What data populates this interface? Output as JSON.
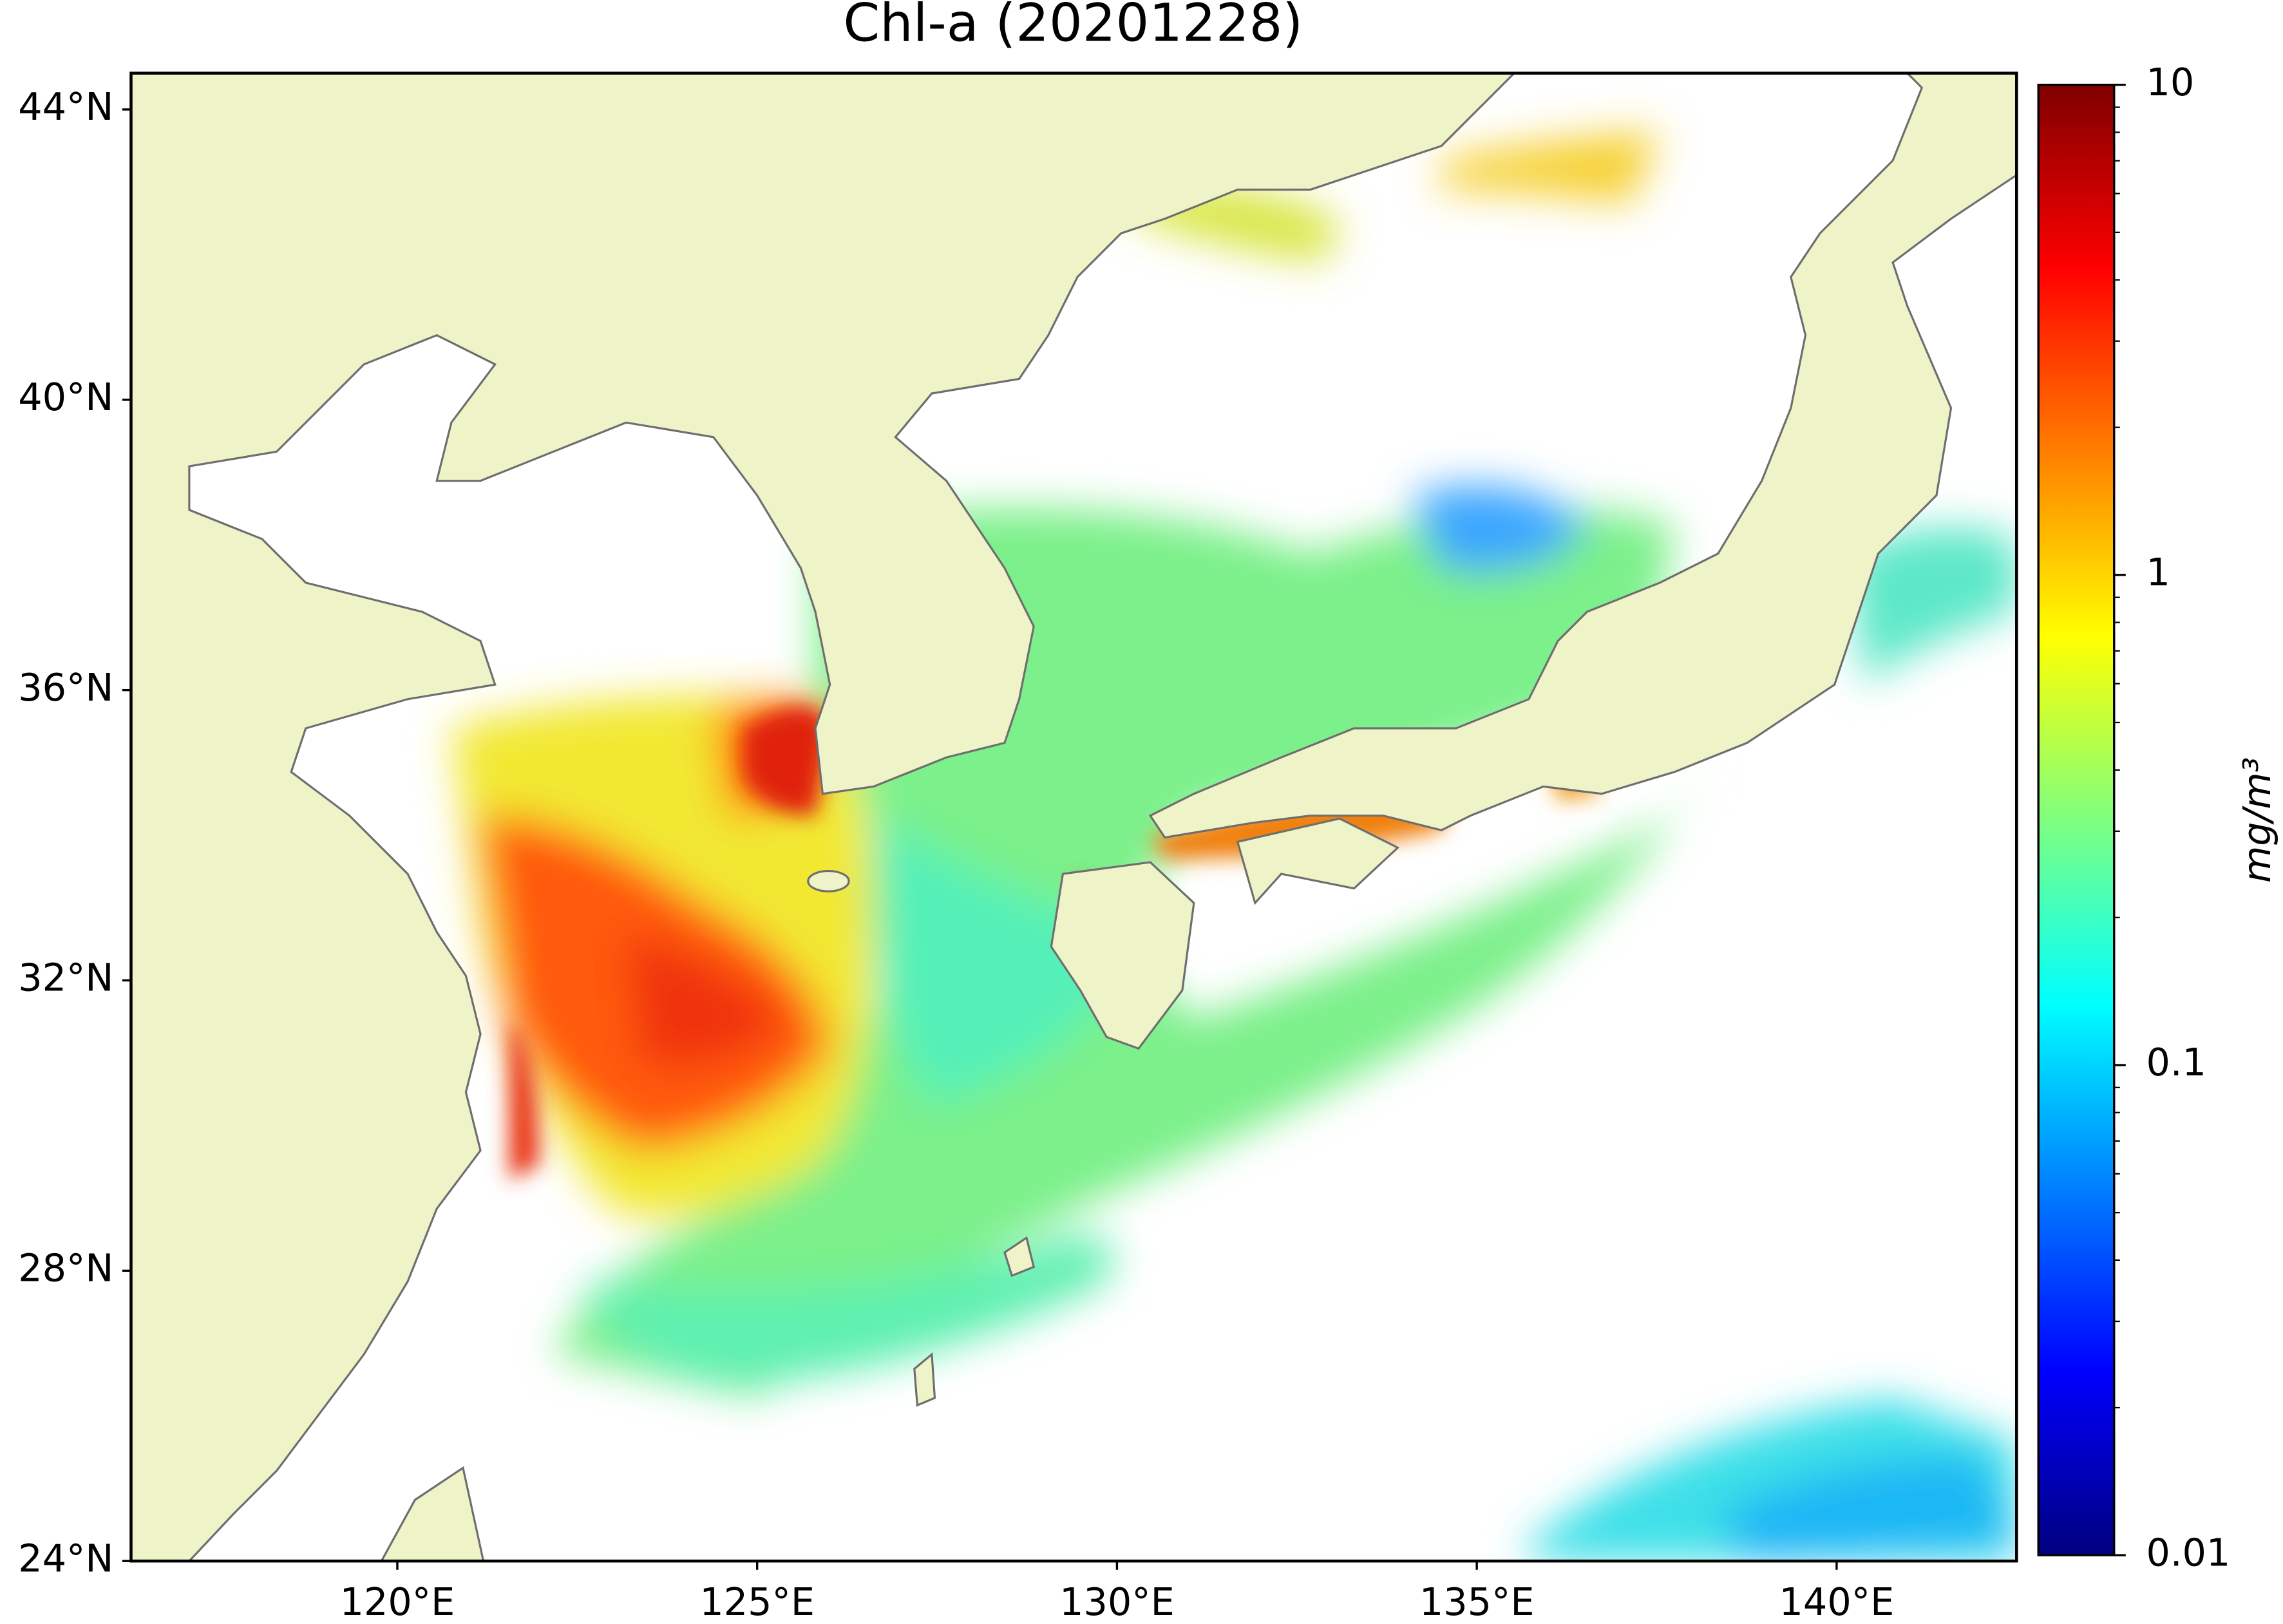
{
  "chart_data": {
    "type": "map",
    "title": "Chl-a (20201228)",
    "xlim": [
      116.3,
      142.5
    ],
    "ylim": [
      24,
      44.5
    ],
    "xticks": [
      {
        "value": 120,
        "label": "120°E"
      },
      {
        "value": 125,
        "label": "125°E"
      },
      {
        "value": 130,
        "label": "130°E"
      },
      {
        "value": 135,
        "label": "135°E"
      },
      {
        "value": 140,
        "label": "140°E"
      }
    ],
    "yticks": [
      {
        "value": 24,
        "label": "24°N"
      },
      {
        "value": 28,
        "label": "28°N"
      },
      {
        "value": 32,
        "label": "32°N"
      },
      {
        "value": 36,
        "label": "36°N"
      },
      {
        "value": 40,
        "label": "40°N"
      },
      {
        "value": 44,
        "label": "44°N"
      }
    ],
    "colorbar": {
      "label": "mg/m³",
      "log": true,
      "lim": [
        0.01,
        10
      ],
      "ticks": [
        0.01,
        0.1,
        1,
        10
      ],
      "minorticks": [
        0.02,
        0.03,
        0.04,
        0.05,
        0.06,
        0.07,
        0.08,
        0.09,
        0.2,
        0.3,
        0.4,
        0.5,
        0.6,
        0.7,
        0.8,
        0.9,
        2,
        3,
        4,
        5,
        6,
        7,
        8,
        9
      ],
      "colormap": [
        "#00007f",
        "#0000ff",
        "#007fff",
        "#00ffff",
        "#7fff7f",
        "#ffff00",
        "#ff7f00",
        "#ff0000",
        "#7f0000"
      ]
    }
  }
}
